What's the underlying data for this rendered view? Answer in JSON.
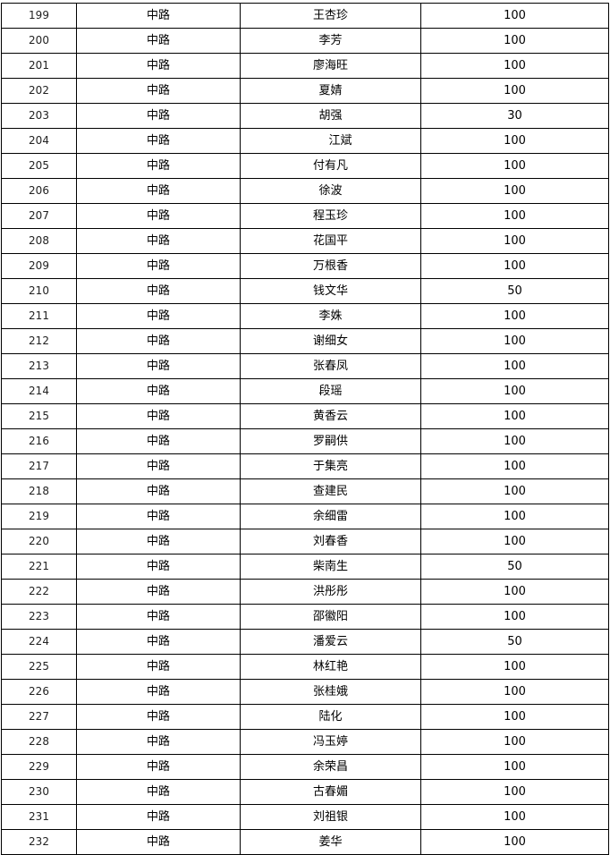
{
  "table": {
    "rows": [
      {
        "no": "199",
        "area": "中路",
        "name": "王杏珍",
        "amount": "100"
      },
      {
        "no": "200",
        "area": "中路",
        "name": "李芳",
        "amount": "100"
      },
      {
        "no": "201",
        "area": "中路",
        "name": "廖海旺",
        "amount": "100"
      },
      {
        "no": "202",
        "area": "中路",
        "name": "夏婧",
        "amount": "100"
      },
      {
        "no": "203",
        "area": "中路",
        "name": "胡强",
        "amount": "30"
      },
      {
        "no": "204",
        "area": "中路",
        "name": "江斌",
        "amount": "100"
      },
      {
        "no": "205",
        "area": "中路",
        "name": "付有凡",
        "amount": "100"
      },
      {
        "no": "206",
        "area": "中路",
        "name": "徐波",
        "amount": "100"
      },
      {
        "no": "207",
        "area": "中路",
        "name": "程玉珍",
        "amount": "100"
      },
      {
        "no": "208",
        "area": "中路",
        "name": "花国平",
        "amount": "100"
      },
      {
        "no": "209",
        "area": "中路",
        "name": "万根香",
        "amount": "100"
      },
      {
        "no": "210",
        "area": "中路",
        "name": "钱文华",
        "amount": "50"
      },
      {
        "no": "211",
        "area": "中路",
        "name": "李姝",
        "amount": "100"
      },
      {
        "no": "212",
        "area": "中路",
        "name": "谢细女",
        "amount": "100"
      },
      {
        "no": "213",
        "area": "中路",
        "name": "张春凤",
        "amount": "100"
      },
      {
        "no": "214",
        "area": "中路",
        "name": "段瑶",
        "amount": "100"
      },
      {
        "no": "215",
        "area": "中路",
        "name": "黄香云",
        "amount": "100"
      },
      {
        "no": "216",
        "area": "中路",
        "name": "罗嗣供",
        "amount": "100"
      },
      {
        "no": "217",
        "area": "中路",
        "name": "于集亮",
        "amount": "100"
      },
      {
        "no": "218",
        "area": "中路",
        "name": "查建民",
        "amount": "100"
      },
      {
        "no": "219",
        "area": "中路",
        "name": "余细雷",
        "amount": "100"
      },
      {
        "no": "220",
        "area": "中路",
        "name": "刘春香",
        "amount": "100"
      },
      {
        "no": "221",
        "area": "中路",
        "name": "柴南生",
        "amount": "50"
      },
      {
        "no": "222",
        "area": "中路",
        "name": "洪彤彤",
        "amount": "100"
      },
      {
        "no": "223",
        "area": "中路",
        "name": "邵徽阳",
        "amount": "100"
      },
      {
        "no": "224",
        "area": "中路",
        "name": "潘爱云",
        "amount": "50"
      },
      {
        "no": "225",
        "area": "中路",
        "name": "林红艳",
        "amount": "100"
      },
      {
        "no": "226",
        "area": "中路",
        "name": "张桂娥",
        "amount": "100"
      },
      {
        "no": "227",
        "area": "中路",
        "name": "陆化",
        "amount": "100"
      },
      {
        "no": "228",
        "area": "中路",
        "name": "冯玉婷",
        "amount": "100"
      },
      {
        "no": "229",
        "area": "中路",
        "name": "余荣昌",
        "amount": "100"
      },
      {
        "no": "230",
        "area": "中路",
        "name": "古春媚",
        "amount": "100"
      },
      {
        "no": "231",
        "area": "中路",
        "name": "刘祖银",
        "amount": "100"
      },
      {
        "no": "232",
        "area": "中路",
        "name": "姜华",
        "amount": "100"
      }
    ]
  }
}
